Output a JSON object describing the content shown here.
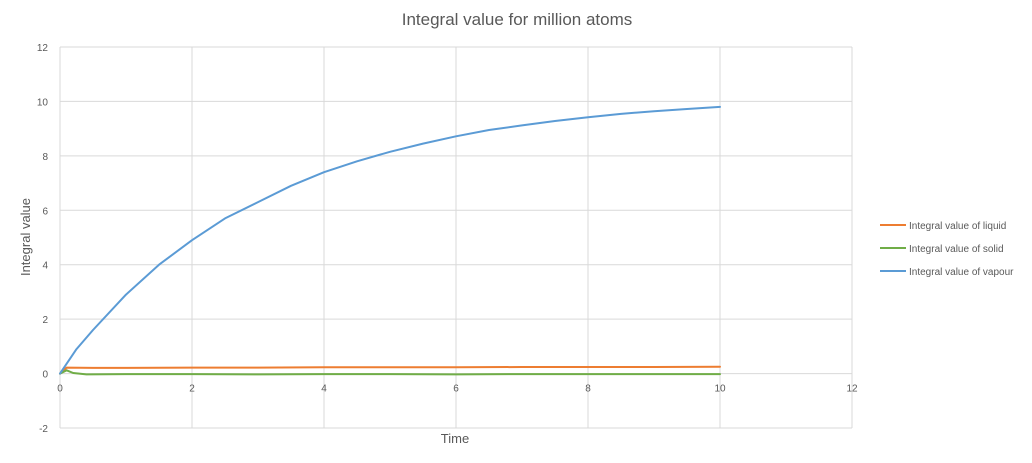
{
  "chart_data": {
    "type": "line",
    "title": "Integral value for million atoms",
    "xlabel": "Time",
    "ylabel": "Integral value",
    "xlim": [
      0,
      12
    ],
    "ylim": [
      -2,
      12
    ],
    "x_ticks": [
      0,
      2,
      4,
      6,
      8,
      10,
      12
    ],
    "y_ticks": [
      -2,
      0,
      2,
      4,
      6,
      8,
      10,
      12
    ],
    "grid": true,
    "legend_position": "right",
    "series": [
      {
        "name": "Integral value of liquid",
        "color": "#ed7d31",
        "x": [
          0,
          0.1,
          0.5,
          1,
          2,
          3,
          4,
          5,
          6,
          7,
          8,
          9,
          10
        ],
        "y": [
          0,
          0.22,
          0.21,
          0.21,
          0.22,
          0.22,
          0.23,
          0.23,
          0.23,
          0.24,
          0.24,
          0.24,
          0.25
        ]
      },
      {
        "name": "Integral value of solid",
        "color": "#70ad47",
        "x": [
          0,
          0.1,
          0.2,
          0.4,
          1,
          2,
          3,
          4,
          5,
          6,
          7,
          8,
          9,
          10
        ],
        "y": [
          0,
          0.12,
          0.02,
          -0.03,
          -0.02,
          -0.02,
          -0.03,
          -0.02,
          -0.02,
          -0.03,
          -0.02,
          -0.02,
          -0.02,
          -0.02
        ]
      },
      {
        "name": "Integral value of vapour",
        "color": "#5b9bd5",
        "x": [
          0,
          0.25,
          0.5,
          1,
          1.5,
          2,
          2.5,
          3,
          3.5,
          4,
          4.5,
          5,
          5.5,
          6,
          6.5,
          7,
          7.5,
          8,
          8.5,
          9,
          9.5,
          10
        ],
        "y": [
          0,
          0.9,
          1.6,
          2.9,
          4.0,
          4.9,
          5.7,
          6.3,
          6.9,
          7.4,
          7.8,
          8.15,
          8.45,
          8.72,
          8.95,
          9.12,
          9.28,
          9.42,
          9.54,
          9.64,
          9.72,
          9.8
        ]
      }
    ]
  }
}
